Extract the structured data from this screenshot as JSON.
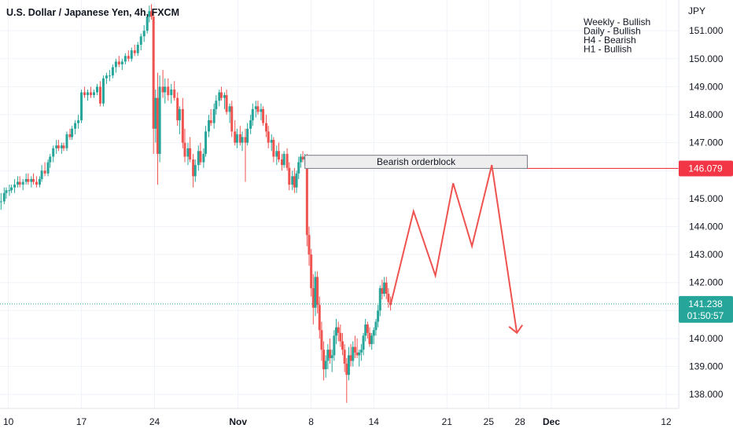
{
  "chart_data": {
    "type": "candlestick",
    "title": "U.S. Dollar / Japanese Yen, 4h, FXCM",
    "currency_label": "JPY",
    "notes": [
      "Weekly - Bullish",
      "Daily - Bullish",
      "H4 - Bearish",
      "H1 - Bullish"
    ],
    "y_ticks": [
      "138.000",
      "139.000",
      "140.000",
      "141.000",
      "142.000",
      "143.000",
      "144.000",
      "145.000",
      "146.000",
      "147.000",
      "148.000",
      "149.000",
      "150.000",
      "151.000"
    ],
    "ylim": [
      137.5,
      152.1
    ],
    "x_ticks": [
      {
        "label": "10",
        "day": 0,
        "bold": false
      },
      {
        "label": "17",
        "day": 7,
        "bold": false
      },
      {
        "label": "24",
        "day": 14,
        "bold": false
      },
      {
        "label": "Nov",
        "day": 22,
        "bold": true
      },
      {
        "label": "8",
        "day": 29,
        "bold": false
      },
      {
        "label": "14",
        "day": 35,
        "bold": false
      },
      {
        "label": "21",
        "day": 42,
        "bold": false
      },
      {
        "label": "25",
        "day": 46,
        "bold": false
      },
      {
        "label": "28",
        "day": 49,
        "bold": false
      },
      {
        "label": "Dec",
        "day": 52,
        "bold": true
      },
      {
        "label": "12",
        "day": 63,
        "bold": false
      }
    ],
    "xlim": [
      -0.8,
      64.2
    ],
    "candles": [
      [
        -0.7,
        144.9,
        145.2,
        144.6,
        144.9
      ],
      [
        -0.4,
        144.9,
        145.4,
        144.8,
        145.2
      ],
      [
        -0.2,
        145.2,
        145.4,
        145.0,
        145.3
      ],
      [
        0.1,
        145.3,
        145.5,
        145.1,
        145.3
      ],
      [
        0.3,
        145.3,
        145.5,
        145.2,
        145.4
      ],
      [
        0.6,
        145.4,
        145.7,
        145.2,
        145.5
      ],
      [
        0.9,
        145.5,
        145.8,
        145.4,
        145.6
      ],
      [
        1.1,
        145.6,
        145.8,
        145.4,
        145.5
      ],
      [
        1.4,
        145.5,
        145.7,
        145.3,
        145.6
      ],
      [
        1.7,
        145.6,
        145.9,
        145.5,
        145.7
      ],
      [
        1.9,
        145.7,
        145.9,
        145.5,
        145.6
      ],
      [
        2.2,
        145.6,
        145.8,
        145.4,
        145.7
      ],
      [
        2.4,
        145.7,
        145.9,
        145.5,
        145.6
      ],
      [
        2.7,
        145.6,
        145.8,
        145.4,
        145.5
      ],
      [
        3.0,
        145.5,
        145.8,
        145.4,
        145.7
      ],
      [
        3.2,
        145.7,
        146.2,
        145.6,
        146.0
      ],
      [
        3.5,
        146.0,
        146.3,
        145.8,
        145.9
      ],
      [
        3.8,
        145.9,
        146.4,
        145.8,
        146.3
      ],
      [
        4.0,
        146.3,
        146.6,
        146.1,
        146.5
      ],
      [
        4.3,
        146.5,
        146.9,
        146.3,
        146.8
      ],
      [
        4.6,
        146.8,
        147.1,
        146.6,
        146.9
      ],
      [
        4.8,
        146.9,
        147.1,
        146.7,
        146.8
      ],
      [
        5.1,
        146.8,
        147.0,
        146.6,
        146.9
      ],
      [
        5.3,
        146.9,
        147.0,
        146.7,
        146.8
      ],
      [
        5.6,
        146.8,
        147.4,
        146.7,
        147.3
      ],
      [
        5.9,
        147.3,
        147.5,
        147.1,
        147.2
      ],
      [
        6.1,
        147.2,
        147.6,
        147.1,
        147.5
      ],
      [
        6.4,
        147.5,
        147.8,
        147.3,
        147.7
      ],
      [
        6.7,
        147.7,
        148.0,
        147.5,
        147.8
      ],
      [
        7.0,
        147.8,
        148.9,
        147.7,
        148.8
      ],
      [
        7.3,
        148.8,
        149.0,
        148.6,
        148.7
      ],
      [
        7.6,
        148.7,
        148.9,
        148.5,
        148.8
      ],
      [
        7.9,
        148.8,
        149.0,
        148.6,
        148.7
      ],
      [
        8.2,
        148.7,
        148.9,
        148.6,
        148.8
      ],
      [
        8.5,
        148.8,
        149.1,
        148.7,
        149.0
      ],
      [
        8.8,
        149.0,
        149.2,
        148.3,
        148.4
      ],
      [
        9.1,
        148.4,
        149.4,
        148.3,
        149.3
      ],
      [
        9.4,
        149.3,
        149.5,
        149.1,
        149.4
      ],
      [
        9.7,
        149.4,
        149.6,
        149.2,
        149.4
      ],
      [
        10.0,
        149.4,
        149.8,
        149.3,
        149.7
      ],
      [
        10.3,
        149.7,
        150.0,
        149.5,
        149.9
      ],
      [
        10.6,
        149.9,
        150.1,
        149.7,
        149.8
      ],
      [
        10.9,
        149.8,
        150.0,
        149.6,
        149.9
      ],
      [
        11.2,
        149.9,
        150.2,
        149.8,
        150.1
      ],
      [
        11.5,
        150.1,
        150.3,
        149.9,
        150.0
      ],
      [
        11.8,
        150.0,
        150.4,
        149.9,
        150.3
      ],
      [
        12.1,
        150.3,
        150.5,
        150.1,
        150.2
      ],
      [
        12.4,
        150.2,
        150.6,
        150.1,
        150.5
      ],
      [
        12.7,
        150.5,
        150.9,
        150.3,
        150.8
      ],
      [
        13.0,
        150.8,
        151.2,
        150.6,
        151.0
      ],
      [
        13.3,
        151.0,
        151.6,
        150.9,
        151.5
      ],
      [
        13.5,
        151.5,
        151.9,
        151.3,
        151.7
      ],
      [
        13.7,
        151.7,
        151.95,
        151.4,
        151.5
      ],
      [
        13.9,
        151.5,
        151.7,
        146.6,
        147.5
      ],
      [
        14.1,
        147.5,
        148.9,
        147.0,
        148.6
      ],
      [
        14.3,
        148.6,
        149.5,
        145.5,
        146.6
      ],
      [
        14.5,
        146.6,
        149.4,
        146.3,
        149.0
      ],
      [
        14.8,
        149.0,
        149.6,
        148.6,
        148.8
      ],
      [
        15.0,
        148.8,
        149.3,
        148.4,
        149.0
      ],
      [
        15.3,
        149.0,
        149.3,
        148.5,
        148.7
      ],
      [
        15.6,
        148.7,
        149.1,
        148.4,
        148.9
      ],
      [
        15.9,
        148.9,
        149.2,
        148.5,
        148.6
      ],
      [
        16.2,
        148.6,
        148.8,
        147.6,
        147.8
      ],
      [
        16.4,
        147.8,
        148.3,
        147.3,
        148.2
      ],
      [
        16.7,
        148.2,
        148.6,
        146.8,
        147.0
      ],
      [
        16.9,
        147.0,
        147.5,
        146.3,
        146.5
      ],
      [
        17.2,
        146.5,
        147.0,
        146.2,
        146.8
      ],
      [
        17.4,
        146.8,
        147.2,
        146.3,
        146.4
      ],
      [
        17.7,
        146.4,
        146.6,
        145.4,
        145.8
      ],
      [
        17.9,
        145.8,
        146.4,
        145.6,
        146.2
      ],
      [
        18.2,
        146.2,
        146.9,
        146.0,
        146.7
      ],
      [
        18.4,
        146.7,
        147.0,
        146.2,
        146.3
      ],
      [
        18.7,
        146.3,
        146.8,
        146.1,
        146.6
      ],
      [
        18.9,
        146.6,
        147.6,
        146.5,
        147.4
      ],
      [
        19.2,
        147.4,
        148.0,
        147.2,
        147.8
      ],
      [
        19.4,
        147.8,
        148.2,
        147.6,
        147.7
      ],
      [
        19.7,
        147.7,
        148.4,
        147.5,
        148.2
      ],
      [
        19.9,
        148.2,
        148.7,
        148.0,
        148.5
      ],
      [
        20.2,
        148.5,
        148.9,
        148.3,
        148.8
      ],
      [
        20.4,
        148.8,
        149.0,
        148.5,
        148.6
      ],
      [
        20.7,
        148.6,
        148.8,
        148.2,
        148.7
      ],
      [
        20.9,
        148.7,
        148.9,
        148.0,
        148.1
      ],
      [
        21.2,
        148.1,
        148.4,
        147.7,
        148.3
      ],
      [
        21.4,
        148.3,
        148.5,
        147.2,
        147.4
      ],
      [
        21.7,
        147.4,
        147.8,
        146.9,
        147.0
      ],
      [
        21.9,
        147.0,
        147.5,
        146.8,
        147.3
      ],
      [
        22.2,
        147.3,
        147.6,
        146.9,
        147.0
      ],
      [
        22.4,
        147.0,
        147.4,
        146.7,
        147.2
      ],
      [
        22.7,
        147.2,
        147.5,
        145.6,
        147.0
      ],
      [
        22.9,
        147.0,
        147.7,
        146.9,
        147.5
      ],
      [
        23.2,
        147.5,
        148.0,
        147.3,
        147.8
      ],
      [
        23.4,
        147.8,
        148.4,
        147.6,
        148.2
      ],
      [
        23.7,
        148.2,
        148.5,
        147.9,
        148.3
      ],
      [
        23.9,
        148.3,
        148.5,
        148.0,
        148.1
      ],
      [
        24.2,
        148.1,
        148.4,
        147.8,
        148.2
      ],
      [
        24.4,
        148.2,
        148.3,
        147.6,
        147.7
      ],
      [
        24.7,
        147.7,
        148.0,
        147.2,
        147.4
      ],
      [
        24.9,
        147.4,
        147.6,
        146.8,
        147.0
      ],
      [
        25.2,
        147.0,
        147.3,
        146.7,
        147.1
      ],
      [
        25.4,
        147.1,
        147.2,
        146.3,
        146.5
      ],
      [
        25.7,
        146.5,
        146.9,
        146.2,
        146.7
      ],
      [
        25.9,
        146.7,
        147.0,
        146.3,
        146.4
      ],
      [
        26.2,
        146.4,
        146.6,
        146.0,
        146.2
      ],
      [
        26.4,
        146.2,
        146.7,
        146.1,
        146.6
      ],
      [
        26.7,
        146.6,
        146.8,
        146.0,
        146.1
      ],
      [
        26.9,
        146.1,
        146.3,
        145.3,
        145.5
      ],
      [
        27.2,
        145.5,
        146.0,
        145.3,
        145.8
      ],
      [
        27.4,
        145.8,
        146.1,
        145.2,
        145.4
      ],
      [
        27.6,
        145.4,
        146.0,
        145.2,
        145.9
      ],
      [
        27.8,
        145.9,
        146.5,
        145.7,
        146.3
      ],
      [
        28.0,
        146.3,
        146.6,
        146.1,
        146.5
      ],
      [
        28.2,
        146.5,
        146.7,
        146.3,
        146.4
      ],
      [
        28.4,
        146.4,
        146.6,
        146.2,
        146.5
      ],
      [
        28.6,
        146.5,
        146.6,
        143.3,
        143.7
      ],
      [
        28.8,
        143.7,
        144.0,
        142.6,
        143.0
      ],
      [
        29.0,
        143.0,
        143.2,
        141.5,
        141.8
      ],
      [
        29.2,
        141.8,
        142.3,
        140.5,
        141.1
      ],
      [
        29.4,
        141.1,
        142.4,
        140.8,
        142.2
      ],
      [
        29.6,
        142.2,
        142.4,
        140.9,
        141.2
      ],
      [
        29.8,
        141.2,
        141.5,
        140.0,
        140.3
      ],
      [
        30.0,
        140.3,
        140.6,
        139.2,
        139.6
      ],
      [
        30.2,
        139.6,
        139.9,
        138.5,
        138.9
      ],
      [
        30.4,
        138.9,
        139.4,
        138.6,
        139.2
      ],
      [
        30.6,
        139.2,
        139.8,
        138.9,
        139.6
      ],
      [
        30.8,
        139.6,
        140.0,
        139.1,
        139.3
      ],
      [
        31.0,
        139.3,
        139.6,
        138.8,
        139.4
      ],
      [
        31.2,
        139.4,
        140.3,
        139.2,
        140.1
      ],
      [
        31.4,
        140.1,
        140.7,
        139.8,
        140.4
      ],
      [
        31.6,
        140.4,
        140.6,
        139.9,
        140.2
      ],
      [
        31.8,
        140.2,
        140.5,
        139.7,
        139.9
      ],
      [
        32.0,
        139.9,
        140.2,
        139.4,
        139.6
      ],
      [
        32.2,
        139.6,
        139.8,
        138.8,
        139.1
      ],
      [
        32.4,
        139.1,
        139.3,
        137.7,
        138.7
      ],
      [
        32.6,
        138.7,
        139.7,
        138.5,
        139.4
      ],
      [
        32.8,
        139.4,
        139.8,
        139.0,
        139.2
      ],
      [
        33.0,
        139.2,
        139.9,
        139.0,
        139.7
      ],
      [
        33.2,
        139.7,
        140.1,
        139.3,
        139.5
      ],
      [
        33.4,
        139.5,
        140.0,
        139.3,
        139.4
      ],
      [
        33.6,
        139.4,
        139.6,
        139.0,
        139.5
      ],
      [
        33.8,
        139.5,
        139.8,
        139.2,
        139.6
      ],
      [
        34.0,
        139.6,
        140.2,
        139.4,
        140.1
      ],
      [
        34.2,
        140.1,
        140.7,
        139.9,
        140.5
      ],
      [
        34.4,
        140.5,
        140.6,
        140.0,
        140.2
      ],
      [
        34.6,
        140.2,
        140.4,
        139.7,
        139.8
      ],
      [
        34.8,
        139.8,
        140.2,
        139.6,
        140.1
      ],
      [
        35.0,
        140.1,
        140.4,
        139.8,
        140.3
      ],
      [
        35.2,
        140.3,
        140.7,
        140.1,
        140.6
      ],
      [
        35.4,
        140.6,
        141.2,
        140.4,
        141.0
      ],
      [
        35.6,
        141.0,
        141.9,
        140.8,
        141.8
      ],
      [
        35.8,
        141.8,
        142.1,
        141.4,
        141.6
      ],
      [
        36.0,
        141.6,
        142.2,
        141.5,
        142.0
      ],
      [
        36.2,
        142.0,
        142.2,
        141.4,
        141.6
      ],
      [
        36.4,
        141.6,
        141.8,
        141.1,
        141.3
      ],
      [
        36.6,
        141.3,
        141.5,
        141.0,
        141.2
      ]
    ],
    "orderblock": {
      "label": "Bearish orderblock",
      "top": 146.55,
      "bottom": 146.08,
      "day_start": 28.4,
      "day_end": 49.7
    },
    "resistance_line": {
      "value": 146.079,
      "day_start": 49.7
    },
    "projection": [
      [
        36.6,
        141.2
      ],
      [
        38.8,
        144.55
      ],
      [
        40.9,
        142.25
      ],
      [
        42.6,
        145.55
      ],
      [
        44.4,
        143.3
      ],
      [
        46.3,
        146.2
      ],
      [
        48.7,
        140.2
      ]
    ],
    "current_price": "141.238",
    "countdown": "01:50:57",
    "resistance_label": "146.079",
    "colors": {
      "up": "#26a69a",
      "down": "#ef5350",
      "projection": "#ef5350",
      "resistance_badge": "#f23645",
      "price_badge": "#26a69a",
      "orderblock_fill": "#eeeeee",
      "orderblock_border": "#787b86"
    }
  }
}
